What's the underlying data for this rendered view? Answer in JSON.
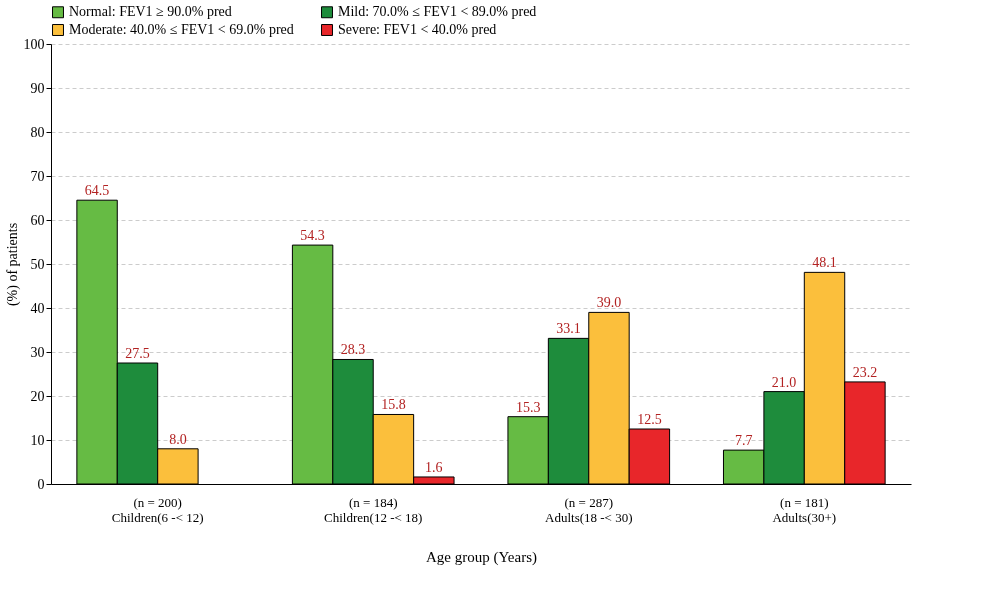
{
  "chart_data": {
    "type": "bar",
    "xlabel": "Age group (Years)",
    "ylabel": "(%) of patients",
    "categories": [
      "(n = 200)\nChildren(6 -< 12)",
      "(n = 184)\nChildren(12 -< 18)",
      "(n = 287)\nAdults(18 -< 30)",
      "(n = 181)\nAdults(30+)"
    ],
    "series": [
      {
        "name": "Normal: FEV1 ≥ 90.0% pred",
        "color": "#66bb44",
        "values": [
          64.5,
          54.3,
          15.3,
          7.7
        ]
      },
      {
        "name": "Mild: 70.0% ≤ FEV1 < 89.0% pred",
        "color": "#1e8c3c",
        "values": [
          27.5,
          28.3,
          33.1,
          21.0
        ]
      },
      {
        "name": "Moderate: 40.0% ≤ FEV1 < 69.0% pred",
        "color": "#fbbf3c",
        "values": [
          8.0,
          15.8,
          39.0,
          48.1
        ]
      },
      {
        "name": "Severe: FEV1 < 40.0% pred",
        "color": "#e8262a",
        "values": [
          null,
          1.6,
          12.5,
          23.2
        ]
      }
    ],
    "value_labels": [
      [
        "64.5",
        "54.3",
        "15.3",
        "7.7"
      ],
      [
        "27.5",
        "28.3",
        "33.1",
        "21.0"
      ],
      [
        "8.0",
        "15.8",
        "39.0",
        "48.1"
      ],
      [
        null,
        "1.6",
        "12.5",
        "23.2"
      ]
    ],
    "ylim": [
      0,
      100
    ],
    "yticks": [
      0,
      10,
      20,
      30,
      40,
      50,
      60,
      70,
      80,
      90,
      100
    ],
    "grid": "y",
    "legend": "top"
  }
}
